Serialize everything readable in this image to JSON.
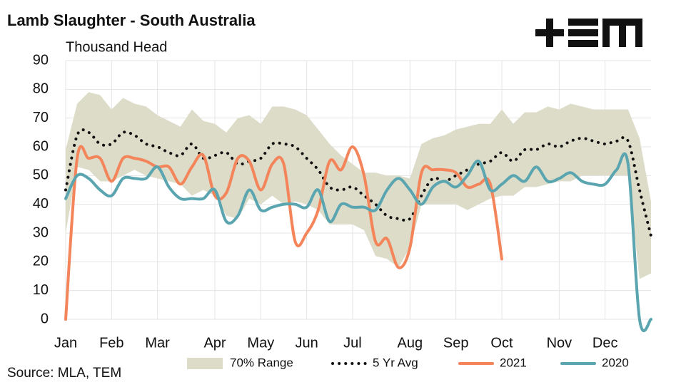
{
  "chart_data": {
    "type": "line",
    "title": "Lamb Slaughter - South Australia",
    "y_label": "Thousand Head",
    "source": "Source: MLA, TEM",
    "categories": [
      "Jan",
      null,
      null,
      null,
      "Feb",
      null,
      null,
      null,
      "Mar",
      null,
      null,
      null,
      null,
      "Apr",
      null,
      null,
      null,
      "May",
      null,
      null,
      null,
      "Jun",
      null,
      null,
      null,
      "Jul",
      null,
      null,
      null,
      null,
      "Aug",
      null,
      null,
      null,
      "Sep",
      null,
      null,
      null,
      "Oct",
      null,
      null,
      null,
      null,
      "Nov",
      null,
      null,
      null,
      "Dec",
      null,
      null,
      null,
      null
    ],
    "ylim": [
      0,
      90
    ],
    "yticks": [
      0,
      10,
      20,
      30,
      40,
      50,
      60,
      70,
      80,
      90
    ],
    "grid": true,
    "series": [
      {
        "name": "70% Range",
        "color": "#dcdcc9",
        "style": "band",
        "high": [
          59,
          75,
          79,
          78,
          73,
          77,
          75,
          74,
          71,
          69,
          67,
          73,
          69,
          68,
          65,
          70,
          71,
          68,
          74,
          74,
          73,
          71,
          66,
          61,
          57,
          54,
          51,
          51,
          50,
          50,
          49,
          61,
          63,
          64,
          66,
          67,
          68,
          68,
          73,
          68,
          72,
          72,
          74,
          73,
          75,
          74,
          73,
          73,
          73,
          73,
          63,
          41
        ],
        "low": [
          30,
          53,
          52,
          48,
          48,
          50,
          52,
          50,
          49,
          48,
          47,
          43,
          45,
          43,
          36,
          35,
          42,
          40,
          43,
          40,
          41,
          40,
          38,
          33,
          33,
          33,
          31,
          22,
          21,
          18,
          25,
          40,
          40,
          40,
          40,
          38,
          40,
          42,
          43,
          43,
          46,
          46,
          47,
          48,
          48,
          50,
          50,
          50,
          50,
          50,
          14,
          16
        ]
      },
      {
        "name": "5 Yr Avg",
        "color": "#111111",
        "style": "dotted",
        "values": [
          45,
          64,
          65,
          61,
          61,
          65,
          64,
          61,
          60,
          58,
          57,
          61,
          56,
          57,
          58,
          54,
          55,
          56,
          61,
          61,
          60,
          56,
          52,
          46,
          45,
          46,
          43,
          40,
          36,
          35,
          35,
          43,
          49,
          48,
          50,
          52,
          54,
          55,
          58,
          55,
          59,
          59,
          61,
          60,
          62,
          63,
          62,
          61,
          62,
          62,
          45,
          29
        ]
      },
      {
        "name": "2021",
        "color": "#f4845a",
        "style": "solid",
        "values": [
          0,
          56,
          56,
          56,
          48,
          56,
          56,
          55,
          53,
          53,
          47,
          53,
          57,
          43,
          44,
          56,
          55,
          45,
          54,
          54,
          27,
          30,
          38,
          55,
          52,
          60,
          50,
          27,
          28,
          18,
          25,
          51,
          52,
          52,
          51,
          46,
          47,
          47,
          21,
          null,
          null,
          null,
          null,
          null,
          null,
          null,
          null,
          null,
          null,
          null,
          null,
          null
        ]
      },
      {
        "name": "2020",
        "color": "#5aa5af",
        "style": "solid",
        "values": [
          42,
          50,
          49,
          45,
          43,
          49,
          49,
          49,
          53,
          46,
          42,
          42,
          42,
          45,
          34,
          36,
          45,
          38,
          39,
          40,
          40,
          39,
          45,
          34,
          40,
          39,
          39,
          38,
          45,
          49,
          45,
          40,
          46,
          48,
          46,
          50,
          55,
          45,
          47,
          50,
          48,
          53,
          48,
          49,
          51,
          48,
          47,
          47,
          52,
          54,
          0,
          0
        ]
      }
    ]
  }
}
